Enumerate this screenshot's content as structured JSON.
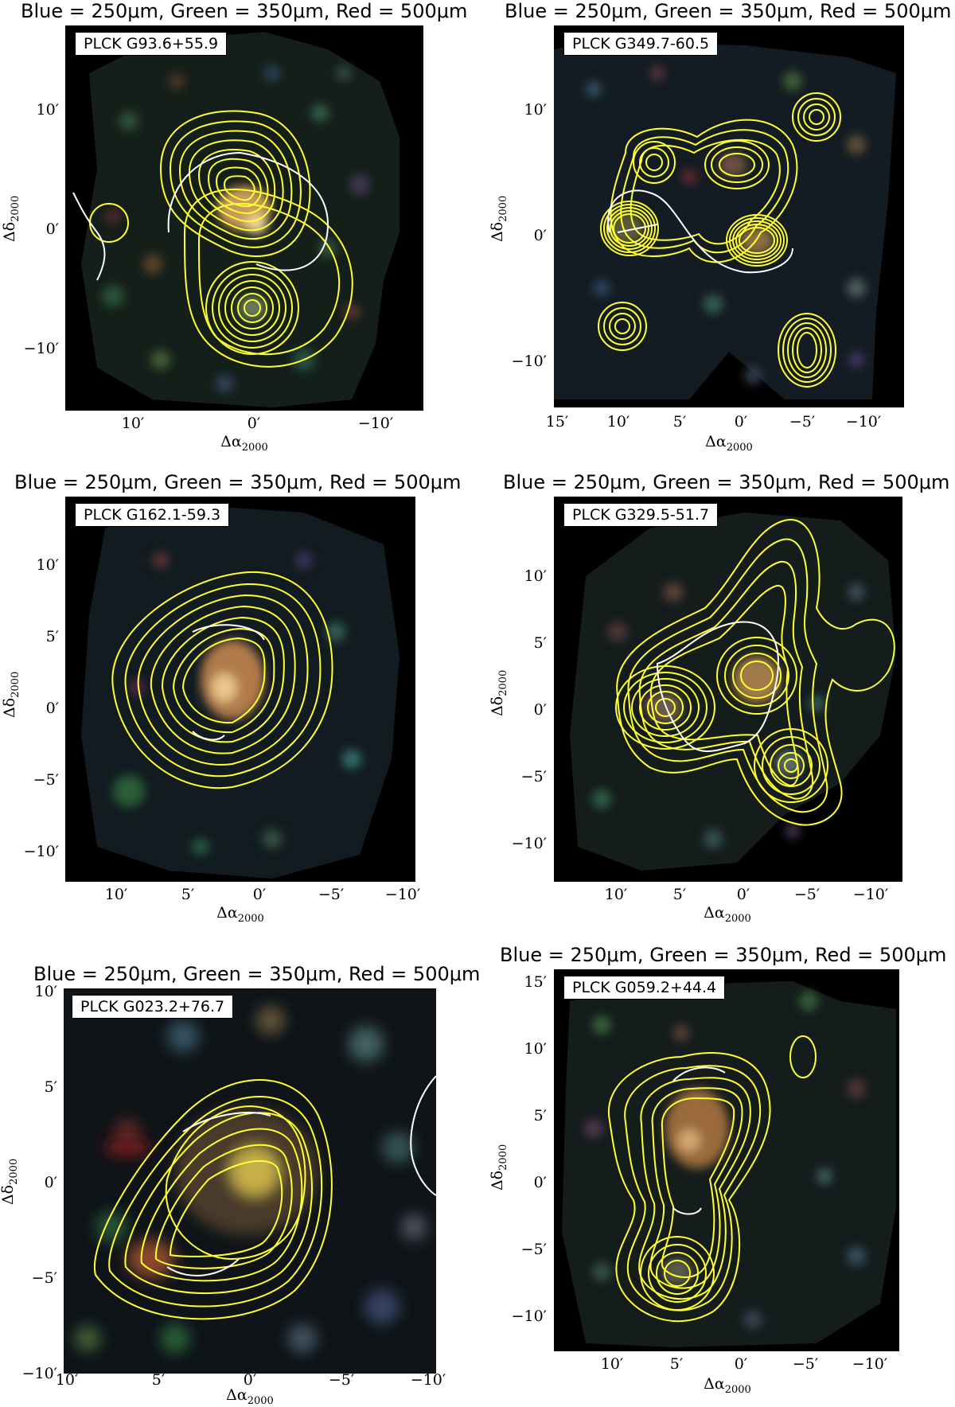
{
  "colors": {
    "contour_yellow": "#ffff33",
    "contour_white": "#ffffff",
    "background_sky": "#000000"
  },
  "panels": [
    {
      "title": "Blue = 250$\\mu$m, Green = 350$\\mu$m, Red = 500$\\mu$m",
      "title_display": "Blue = 250μm, Green = 350μm, Red = 500μm",
      "source": "PLCK G93.6+55.9",
      "yticks": [
        "10′",
        "0′",
        "−10′"
      ],
      "xticks": [
        "10′",
        "0′",
        "−10′"
      ],
      "xlabel": "Δα",
      "xlabel_sub": "2000",
      "ylabel": "Δδ",
      "ylabel_sub": "2000"
    },
    {
      "title_display": "Blue = 250μm, Green = 350μm, Red = 500μm",
      "source": "PLCK G349.7-60.5",
      "yticks": [
        "10′",
        "0′",
        "−10′"
      ],
      "xticks": [
        "15′",
        "10′",
        "5′",
        "0′",
        "−5′",
        "−10′"
      ],
      "xlabel": "Δα",
      "xlabel_sub": "2000",
      "ylabel": "Δδ",
      "ylabel_sub": "2000"
    },
    {
      "title_display": "Blue = 250μm, Green = 350μm, Red = 500μm",
      "source": "PLCK G162.1-59.3",
      "yticks": [
        "10′",
        "5′",
        "0′",
        "−5′",
        "−10′"
      ],
      "xticks": [
        "10′",
        "5′",
        "0′",
        "−5′",
        "−10′"
      ],
      "xlabel": "Δα",
      "xlabel_sub": "2000",
      "ylabel": "Δδ",
      "ylabel_sub": "2000"
    },
    {
      "title_display": "Blue = 250μm, Green = 350μm, Red = 500μm",
      "source": "PLCK G329.5-51.7",
      "yticks": [
        "10′",
        "5′",
        "0′",
        "−5′",
        "−10′"
      ],
      "xticks": [
        "10′",
        "5′",
        "0′",
        "−5′",
        "−10′"
      ],
      "xlabel": "Δα",
      "xlabel_sub": "2000",
      "ylabel": "Δδ",
      "ylabel_sub": "2000"
    },
    {
      "title_display": "Blue = 250μm, Green = 350μm, Red = 500μm",
      "source": "PLCK G023.2+76.7",
      "yticks": [
        "10′",
        "5′",
        "0′",
        "−5′",
        "−10′"
      ],
      "xticks": [
        "10′",
        "5′",
        "0′",
        "−5′",
        "−10′"
      ],
      "xlabel": "Δα",
      "xlabel_sub": "2000",
      "ylabel": "Δδ",
      "ylabel_sub": "2000"
    },
    {
      "title_display": "Blue = 250μm, Green = 350μm, Red = 500μm",
      "source": "PLCK G059.2+44.4",
      "yticks": [
        "15′",
        "10′",
        "5′",
        "0′",
        "−5′",
        "−10′"
      ],
      "xticks": [
        "10′",
        "5′",
        "0′",
        "−5′",
        "−10′"
      ],
      "xlabel": "Δα",
      "xlabel_sub": "2000",
      "ylabel": "Δδ",
      "ylabel_sub": "2000"
    }
  ]
}
